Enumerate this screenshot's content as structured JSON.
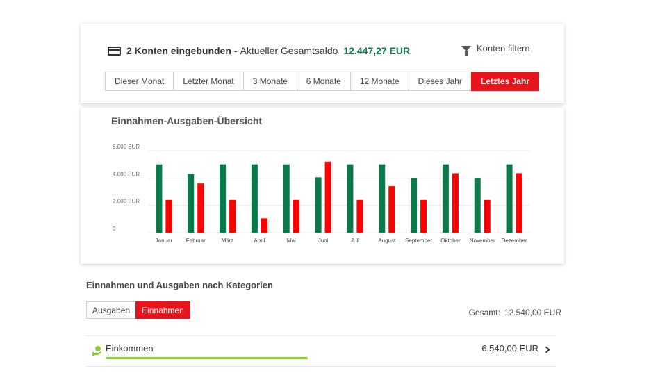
{
  "summary": {
    "accounts_label": "2 Konten eingebunden",
    "separator": "-",
    "balance_label": "Aktueller Gesamtsaldo",
    "balance_value": "12.447,27 EUR",
    "filter_label": "Konten filtern"
  },
  "period_tabs": [
    {
      "label": "Dieser Monat",
      "active": false
    },
    {
      "label": "Letzter Monat",
      "active": false
    },
    {
      "label": "3 Monate",
      "active": false
    },
    {
      "label": "6 Monate",
      "active": false
    },
    {
      "label": "12 Monate",
      "active": false
    },
    {
      "label": "Dieses Jahr",
      "active": false
    },
    {
      "label": "Letztes Jahr",
      "active": true
    }
  ],
  "chart_data": {
    "type": "bar",
    "title": "Einnahmen-Ausgaben-Übersicht",
    "categories": [
      "Januar",
      "Februar",
      "März",
      "April",
      "Mai",
      "Juni",
      "Juli",
      "August",
      "September",
      "Oktober",
      "November",
      "Dezember"
    ],
    "series": [
      {
        "values": [
          5000,
          4300,
          5000,
          5000,
          5000,
          4050,
          5000,
          5000,
          4000,
          5000,
          4000,
          5000
        ],
        "color": "#0a7a4b"
      },
      {
        "values": [
          2400,
          3600,
          2400,
          1050,
          2400,
          5200,
          2400,
          3400,
          2400,
          4350,
          2400,
          4350
        ],
        "color": "#ff0000"
      }
    ],
    "yticks": [
      {
        "value": 0,
        "label": "0"
      },
      {
        "value": 2000,
        "label": "2.000 EUR"
      },
      {
        "value": 4000,
        "label": "4.000 EUR"
      },
      {
        "value": 6000,
        "label": "6.000 EUR"
      }
    ],
    "ylim": [
      0,
      6000
    ],
    "grid": true
  },
  "categories_section": {
    "title": "Einnahmen und Ausgaben nach Kategorien",
    "toggle": [
      {
        "label": "Ausgaben",
        "active": false
      },
      {
        "label": "Einnahmen",
        "active": true
      }
    ],
    "total_label": "Gesamt:",
    "total_value": "12.540,00 EUR",
    "items": [
      {
        "name": "Einkommen",
        "amount": "6.540,00 EUR",
        "icon": "money-hand-icon",
        "share": 0.52
      }
    ]
  },
  "colors": {
    "accent_red": "#e8141c",
    "income_green": "#0a7a4b",
    "category_bar": "#8cc63f"
  }
}
